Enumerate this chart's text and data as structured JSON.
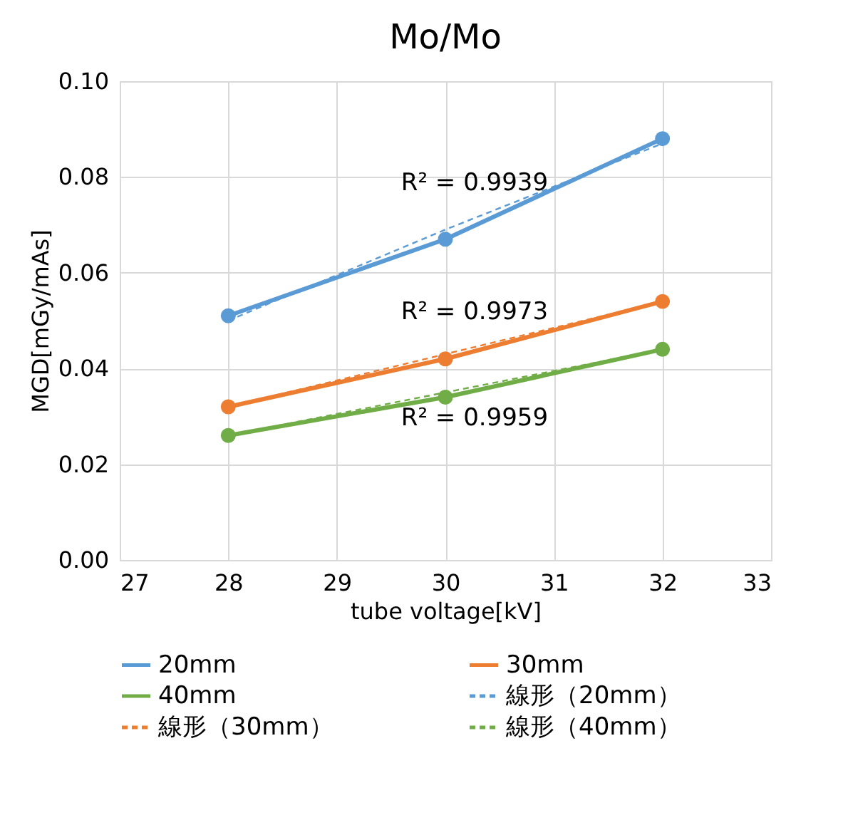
{
  "chart_data": {
    "type": "line",
    "title": "Mo/Mo",
    "xlabel": "tube voltage[kV]",
    "ylabel": "MGD[mGy/mAs]",
    "x": [
      28,
      30,
      32
    ],
    "series": [
      {
        "name": "20mm",
        "color": "#5b9bd5",
        "values": [
          0.051,
          0.067,
          0.088
        ]
      },
      {
        "name": "30mm",
        "color": "#ed7d31",
        "values": [
          0.032,
          0.042,
          0.054
        ]
      },
      {
        "name": "40mm",
        "color": "#70ad47",
        "values": [
          0.026,
          0.034,
          0.044
        ]
      },
      {
        "name": "線形（20mm）",
        "color": "#5b9bd5",
        "values": [
          0.05,
          0.069,
          0.087
        ],
        "marker": "none",
        "line_style": "dashed"
      },
      {
        "name": "線形（30mm）",
        "color": "#ed7d31",
        "values": [
          0.032,
          0.043,
          0.054
        ],
        "marker": "none",
        "line_style": "dashed"
      },
      {
        "name": "線形（40mm）",
        "color": "#70ad47",
        "values": [
          0.026,
          0.035,
          0.044
        ],
        "marker": "none",
        "line_style": "dashed"
      }
    ],
    "annotations": [
      "R² = 0.9939",
      "R² = 0.9973",
      "R² = 0.9959"
    ],
    "xlim": [
      27,
      33
    ],
    "xticks": [
      27,
      28,
      29,
      30,
      31,
      32,
      33
    ],
    "ylim": [
      0,
      0.1
    ],
    "yticks": [
      {
        "value": 0,
        "label": "0.00"
      },
      {
        "value": 0.02,
        "label": "0.02"
      },
      {
        "value": 0.04,
        "label": "0.04"
      },
      {
        "value": 0.06,
        "label": "0.06"
      },
      {
        "value": 0.08,
        "label": "0.08"
      },
      {
        "value": 0.1,
        "label": "0.10"
      }
    ],
    "grid": true,
    "legend": "bottom",
    "marker": "circle",
    "line_style": "solid"
  }
}
